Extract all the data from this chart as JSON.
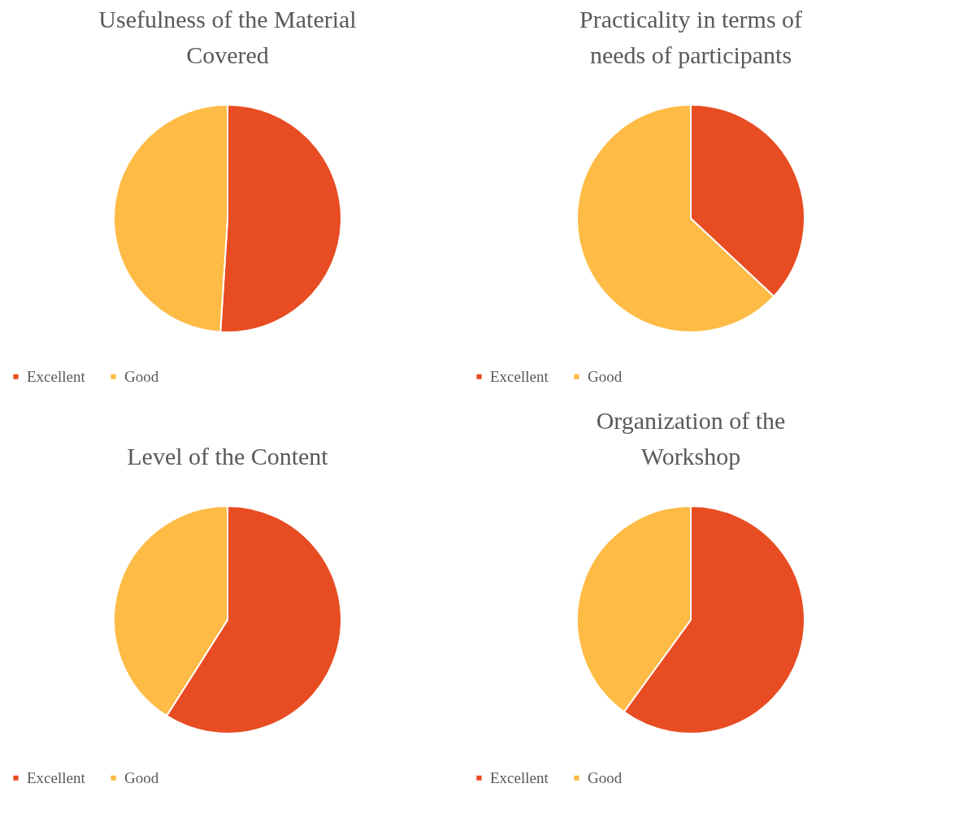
{
  "chart_data": [
    {
      "type": "pie",
      "title": "Usefulness of the Material Covered",
      "categories": [
        "Excellent",
        "Good"
      ],
      "values": [
        51,
        49
      ],
      "colors": [
        "#e84c22",
        "#febb45"
      ],
      "legend": "bottom"
    },
    {
      "type": "pie",
      "title": "Practicality in terms of needs of participants",
      "categories": [
        "Excellent",
        "Good"
      ],
      "values": [
        37,
        63
      ],
      "colors": [
        "#e84c22",
        "#febb45"
      ],
      "legend": "bottom"
    },
    {
      "type": "pie",
      "title": "Level of the Content",
      "categories": [
        "Excellent",
        "Good"
      ],
      "values": [
        59,
        41
      ],
      "colors": [
        "#e84c22",
        "#febb45"
      ],
      "legend": "bottom"
    },
    {
      "type": "pie",
      "title": "Organization of the Workshop",
      "categories": [
        "Excellent",
        "Good"
      ],
      "values": [
        60,
        40
      ],
      "colors": [
        "#e84c22",
        "#febb45"
      ],
      "legend": "bottom"
    }
  ]
}
